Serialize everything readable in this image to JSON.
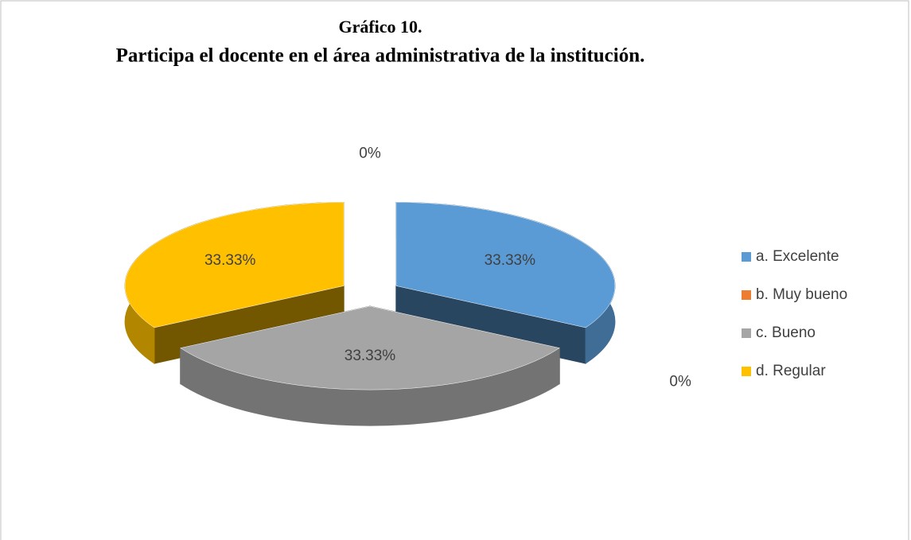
{
  "chart_data": {
    "type": "pie3d",
    "title": "Gráfico 10.",
    "subtitle": "Participa el docente en el área administrativa de la institución.",
    "categories": [
      "a. Excelente",
      "b. Muy bueno",
      "c. Bueno",
      "d. Regular",
      null
    ],
    "values": [
      33.33,
      0,
      33.33,
      33.33,
      0
    ],
    "value_labels": [
      "33.33%",
      "0%",
      "33.33%",
      "33.33%",
      "0%"
    ],
    "colors": [
      "#5b9bd5",
      "#ed7d31",
      "#a5a5a5",
      "#ffc000",
      "#4472c4"
    ],
    "legend": "right"
  }
}
